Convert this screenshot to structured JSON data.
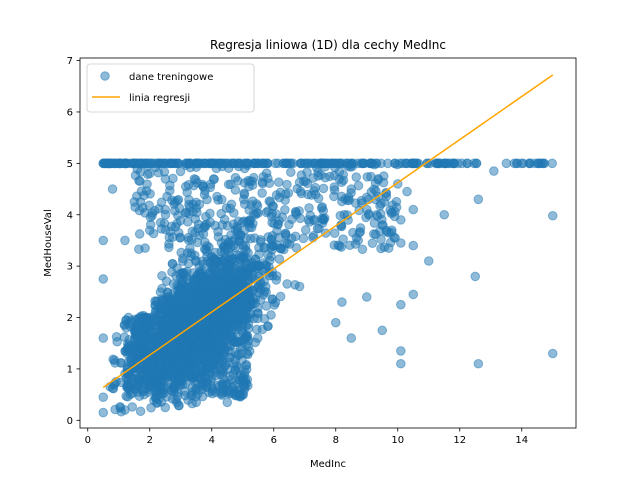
{
  "chart_data": {
    "type": "scatter",
    "title": "Regresja liniowa (1D) dla cechy MedInc",
    "xlabel": "MedInc",
    "ylabel": "MedHouseVal",
    "xlim": [
      -0.25,
      15.75
    ],
    "ylim": [
      -0.15,
      7.05
    ],
    "xticks": [
      0,
      2,
      4,
      6,
      8,
      10,
      12,
      14
    ],
    "yticks": [
      0,
      1,
      2,
      3,
      4,
      5,
      6,
      7
    ],
    "grid": false,
    "legend_position": "top-left",
    "series": [
      {
        "name": "dane treningowe",
        "kind": "scatter",
        "color": "#1f77b4",
        "alpha": 0.5,
        "description_of_points": "dense cloud of California housing training samples; values capped at 5.0",
        "sample_points": [
          [
            0.5,
            0.15
          ],
          [
            0.5,
            0.45
          ],
          [
            0.5,
            1.6
          ],
          [
            0.5,
            2.75
          ],
          [
            0.5,
            3.5
          ],
          [
            0.5,
            5.0
          ],
          [
            1.0,
            5.0
          ],
          [
            0.8,
            4.5
          ],
          [
            1.2,
            3.5
          ],
          [
            1.5,
            4.25
          ],
          [
            2.0,
            4.8
          ],
          [
            2.5,
            4.1
          ],
          [
            1.2,
            0.2
          ],
          [
            2.5,
            0.25
          ],
          [
            3.5,
            0.35
          ],
          [
            4.5,
            0.35
          ],
          [
            5.0,
            0.5
          ],
          [
            8.0,
            1.9
          ],
          [
            8.5,
            1.6
          ],
          [
            8.2,
            2.3
          ],
          [
            9.0,
            2.4
          ],
          [
            9.5,
            1.75
          ],
          [
            10.1,
            1.35
          ],
          [
            10.1,
            1.1
          ],
          [
            10.1,
            2.25
          ],
          [
            10.5,
            2.45
          ],
          [
            10.1,
            3.45
          ],
          [
            10.5,
            3.4
          ],
          [
            10.1,
            3.9
          ],
          [
            10.5,
            4.1
          ],
          [
            11.0,
            3.1
          ],
          [
            11.5,
            4.0
          ],
          [
            12.5,
            2.8
          ],
          [
            12.6,
            1.1
          ],
          [
            12.6,
            4.3
          ],
          [
            13.1,
            4.85
          ],
          [
            15.0,
            1.3
          ],
          [
            15.0,
            3.98
          ],
          [
            8.5,
            4.5
          ],
          [
            9.0,
            4.1
          ],
          [
            9.5,
            3.8
          ],
          [
            10.0,
            4.6
          ],
          [
            10.3,
            4.45
          ]
        ],
        "capped_value": 5.0,
        "capped_x_range": [
          0.5,
          15.0
        ]
      },
      {
        "name": "linia regresji",
        "kind": "line",
        "color": "#ffa500",
        "x": [
          0.5,
          15.0
        ],
        "y": [
          0.64,
          6.72
        ]
      }
    ]
  }
}
